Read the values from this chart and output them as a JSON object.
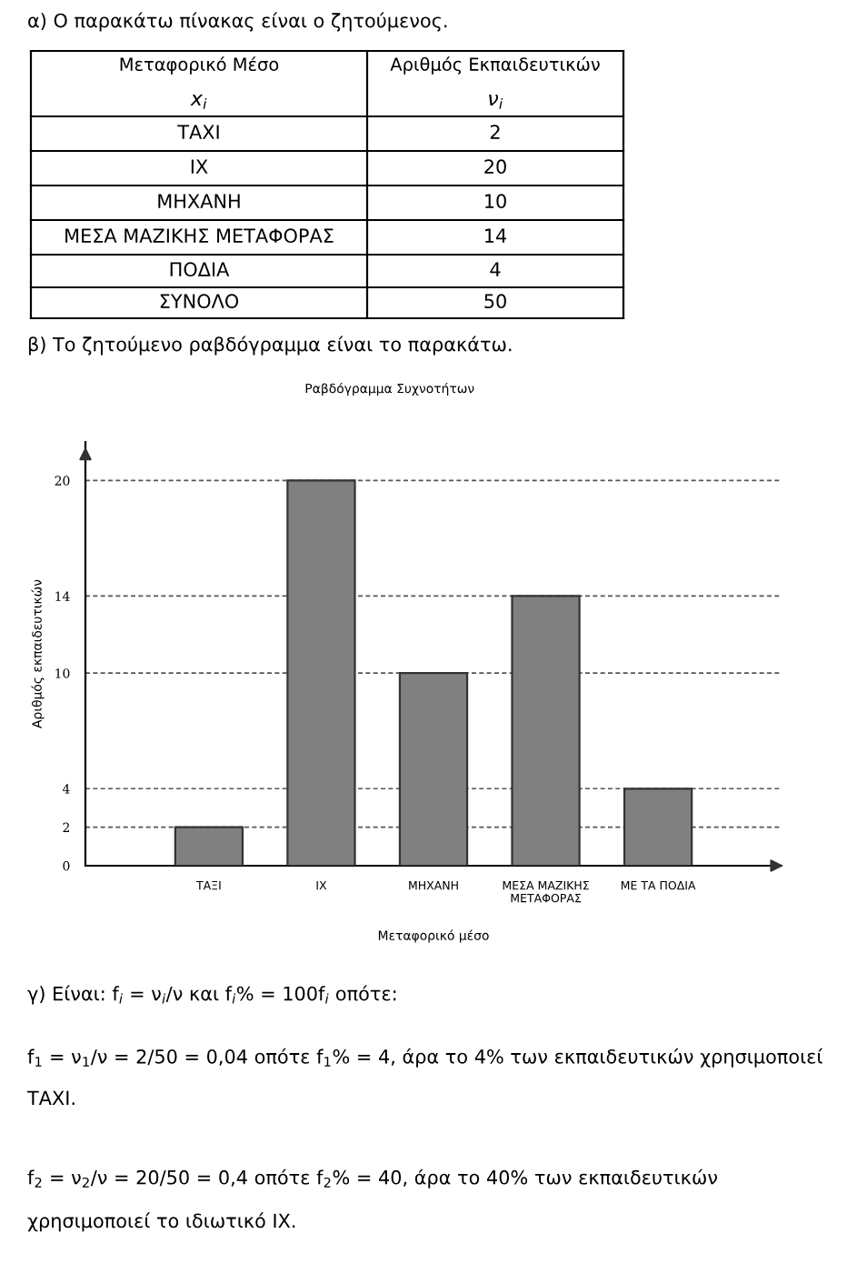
{
  "chart_data": [
    {
      "type": "other",
      "annotations": [
        "α) Ο παρακάτω πίνακας είναι ο ζητούμενος.",
        "Μεταφορικό Μέσο",
        "Αριθμός Εκπαιδευτικών",
        "x$_{i}$",
        "ν$_{i}$",
        "ΤΑΧΙ",
        "2",
        "ΙΧ",
        "20",
        "ΜΗΧΑΝΗ",
        "10",
        "ΜΕΣΑ ΜΑΖΙΚΗΣ ΜΕΤΑΦΟΡΑΣ",
        "14",
        "ΠΟΔΙΑ",
        "4",
        "ΣΥΝΟΛΟ",
        "50",
        "β) Το ζητούμενο ραβδόγραμμα είναι το παρακάτω."
      ]
    },
    {
      "type": "bar",
      "title": "Ραβδόγραμμα Συχνοτήτων",
      "xlabel": "Μεταφορικό μέσο",
      "ylabel": "Αριθμός εκπαιδευτικών",
      "categories": [
        "ΤΑΞΙ",
        "ΙΧ",
        "ΜΗΧΑΝΗ",
        "ΜΕΣΑ ΜΑΖΙΚΗΣ\nΜΕΤΑΦΟΡΑΣ",
        "ΜΕ ΤΑ ΠΟΔΙΑ"
      ],
      "values": [
        2,
        20,
        10,
        14,
        4
      ],
      "color": "#808080",
      "ylim": [
        0,
        22
      ],
      "yticks": [
        0,
        2,
        4,
        10,
        14,
        20
      ],
      "grid": "y",
      "legend": false
    },
    {
      "type": "other",
      "annotations": [
        "γ) Είναι: f$_{i}$ = ν$_{i}$/ν και f$_{i}$% = 100f$_{i}$ οπότε:",
        "f$_{1}$ = ν$_{1}$/ν = 2/50 = 0,04 οπότε f$_{1}$% = 4, άρα το 4% των εκπαιδευτικών χρησιμοποιεί ΤΑΧΙ.",
        "f$_{2}$ = ν$_{2}$/ν = 20/50 = 0,4 οπότε f$_{2}$% = 40, άρα το 40% των εκπαιδευτικών χρησιμοποιεί το ιδιωτικό ΙΧ."
      ]
    }
  ]
}
